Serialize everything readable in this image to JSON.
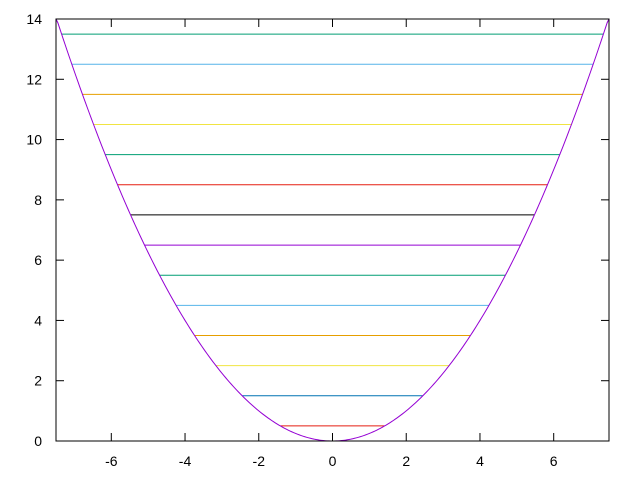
{
  "chart_data": {
    "type": "line",
    "title": "",
    "xlabel": "",
    "ylabel": "",
    "xlim": [
      -7.5,
      7.5
    ],
    "ylim": [
      0,
      14
    ],
    "grid": false,
    "legend": "none",
    "x_ticks": [
      -6,
      -4,
      -2,
      0,
      2,
      4,
      6
    ],
    "y_ticks": [
      0,
      2,
      4,
      6,
      8,
      10,
      12,
      14
    ],
    "curve": {
      "formula": "y = x^2 / 4",
      "color": "#9400d3",
      "x_range": [
        -7.5,
        7.5
      ]
    },
    "levels": [
      {
        "y": 0.5,
        "color": "#e51e10"
      },
      {
        "y": 1.5,
        "color": "#0072b2"
      },
      {
        "y": 2.5,
        "color": "#f0e442"
      },
      {
        "y": 3.5,
        "color": "#e69f00"
      },
      {
        "y": 4.5,
        "color": "#56b4e9"
      },
      {
        "y": 5.5,
        "color": "#009e73"
      },
      {
        "y": 6.5,
        "color": "#9400d3"
      },
      {
        "y": 7.5,
        "color": "#000000"
      },
      {
        "y": 8.5,
        "color": "#e51e10"
      },
      {
        "y": 9.5,
        "color": "#009e73"
      },
      {
        "y": 10.5,
        "color": "#f0e442"
      },
      {
        "y": 11.5,
        "color": "#e69f00"
      },
      {
        "y": 12.5,
        "color": "#56b4e9"
      },
      {
        "y": 13.5,
        "color": "#009e73"
      }
    ]
  }
}
